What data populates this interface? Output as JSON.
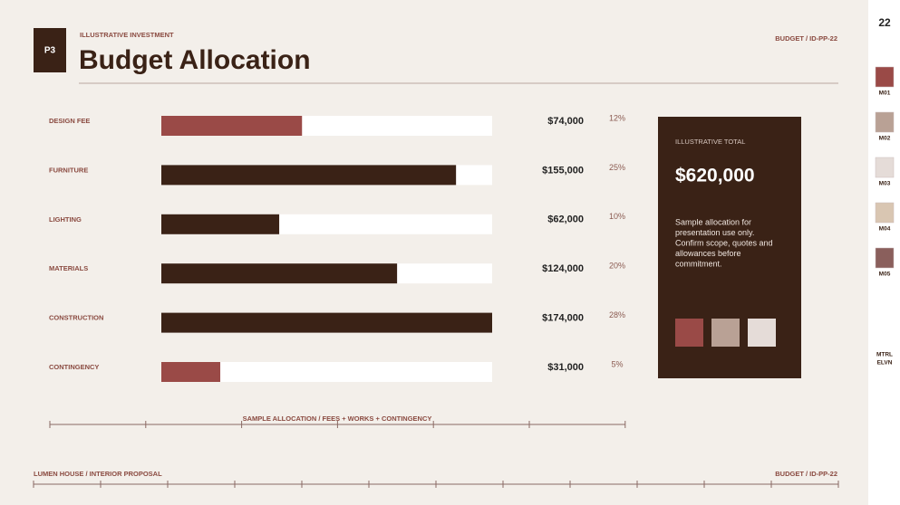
{
  "header": {
    "badge": "P3",
    "kicker": "ILLUSTRATIVE INVESTMENT",
    "title": "Budget Allocation",
    "ref": "BUDGET / ID-PP-22"
  },
  "chart_data": {
    "type": "bar",
    "orientation": "horizontal",
    "categories": [
      "DESIGN FEE",
      "FURNITURE",
      "LIGHTING",
      "MATERIALS",
      "CONSTRUCTION",
      "CONTINGENCY"
    ],
    "values": [
      74000,
      155000,
      62000,
      124000,
      174000,
      31000
    ],
    "value_labels": [
      "$74,000",
      "$155,000",
      "$62,000",
      "$124,000",
      "$174,000",
      "$31,000"
    ],
    "share_labels": [
      "12%",
      "25%",
      "10%",
      "20%",
      "28%",
      "5%"
    ],
    "colors": [
      "#9a4a47",
      "#3a2216",
      "#3a2216",
      "#3a2216",
      "#3a2216",
      "#9a4a47"
    ],
    "xlim": [
      0,
      174000
    ],
    "caption": "SAMPLE ALLOCATION / FEES + WORKS + CONTINGENCY"
  },
  "card": {
    "label": "ILLUSTRATIVE TOTAL",
    "total": "$620,000",
    "note": [
      "Sample allocation for",
      "presentation use only.",
      "Confirm scope, quotes and",
      "allowances before",
      "commitment."
    ]
  },
  "footer": {
    "left": "LUMEN HOUSE / INTERIOR PROPOSAL",
    "right": "BUDGET / ID-PP-22"
  },
  "sidebar": {
    "page": "22",
    "swatches": [
      "M01",
      "M02",
      "M03",
      "M04",
      "M05"
    ],
    "tag": [
      "MTRL",
      "ELVN"
    ]
  }
}
